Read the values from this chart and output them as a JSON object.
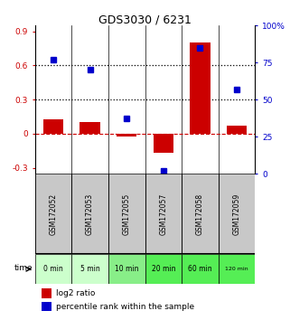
{
  "title": "GDS3030 / 6231",
  "samples": [
    "GSM172052",
    "GSM172053",
    "GSM172055",
    "GSM172057",
    "GSM172058",
    "GSM172059"
  ],
  "time_labels": [
    "0 min",
    "5 min",
    "10 min",
    "20 min",
    "60 min",
    "120 min"
  ],
  "log2_ratio": [
    0.13,
    0.1,
    -0.02,
    -0.17,
    0.8,
    0.07
  ],
  "percentile_rank": [
    77,
    70,
    37,
    2,
    85,
    57
  ],
  "bar_color": "#cc0000",
  "dot_color": "#0000cc",
  "ylim_left": [
    -0.35,
    0.95
  ],
  "ylim_right": [
    0,
    100
  ],
  "yticks_left": [
    -0.3,
    0.0,
    0.3,
    0.6,
    0.9
  ],
  "yticks_right": [
    0,
    25,
    50,
    75,
    100
  ],
  "ytick_labels_left": [
    "-0.3",
    "0",
    "0.3",
    "0.6",
    "0.9"
  ],
  "ytick_labels_right": [
    "0",
    "25",
    "50",
    "75",
    "100%"
  ],
  "hlines": [
    0.3,
    0.6
  ],
  "hline_zero_color": "#cc0000",
  "hline_dotted_color": "#000000",
  "bg_color_gray": "#c8c8c8",
  "bg_color_green_light": "#ccffcc",
  "bg_color_green_mid": "#88ee88",
  "bg_color_green_dark": "#55ee55",
  "time_colors": [
    0,
    0,
    1,
    2,
    2,
    2
  ],
  "legend_log2_color": "#cc0000",
  "legend_pct_color": "#0000cc"
}
